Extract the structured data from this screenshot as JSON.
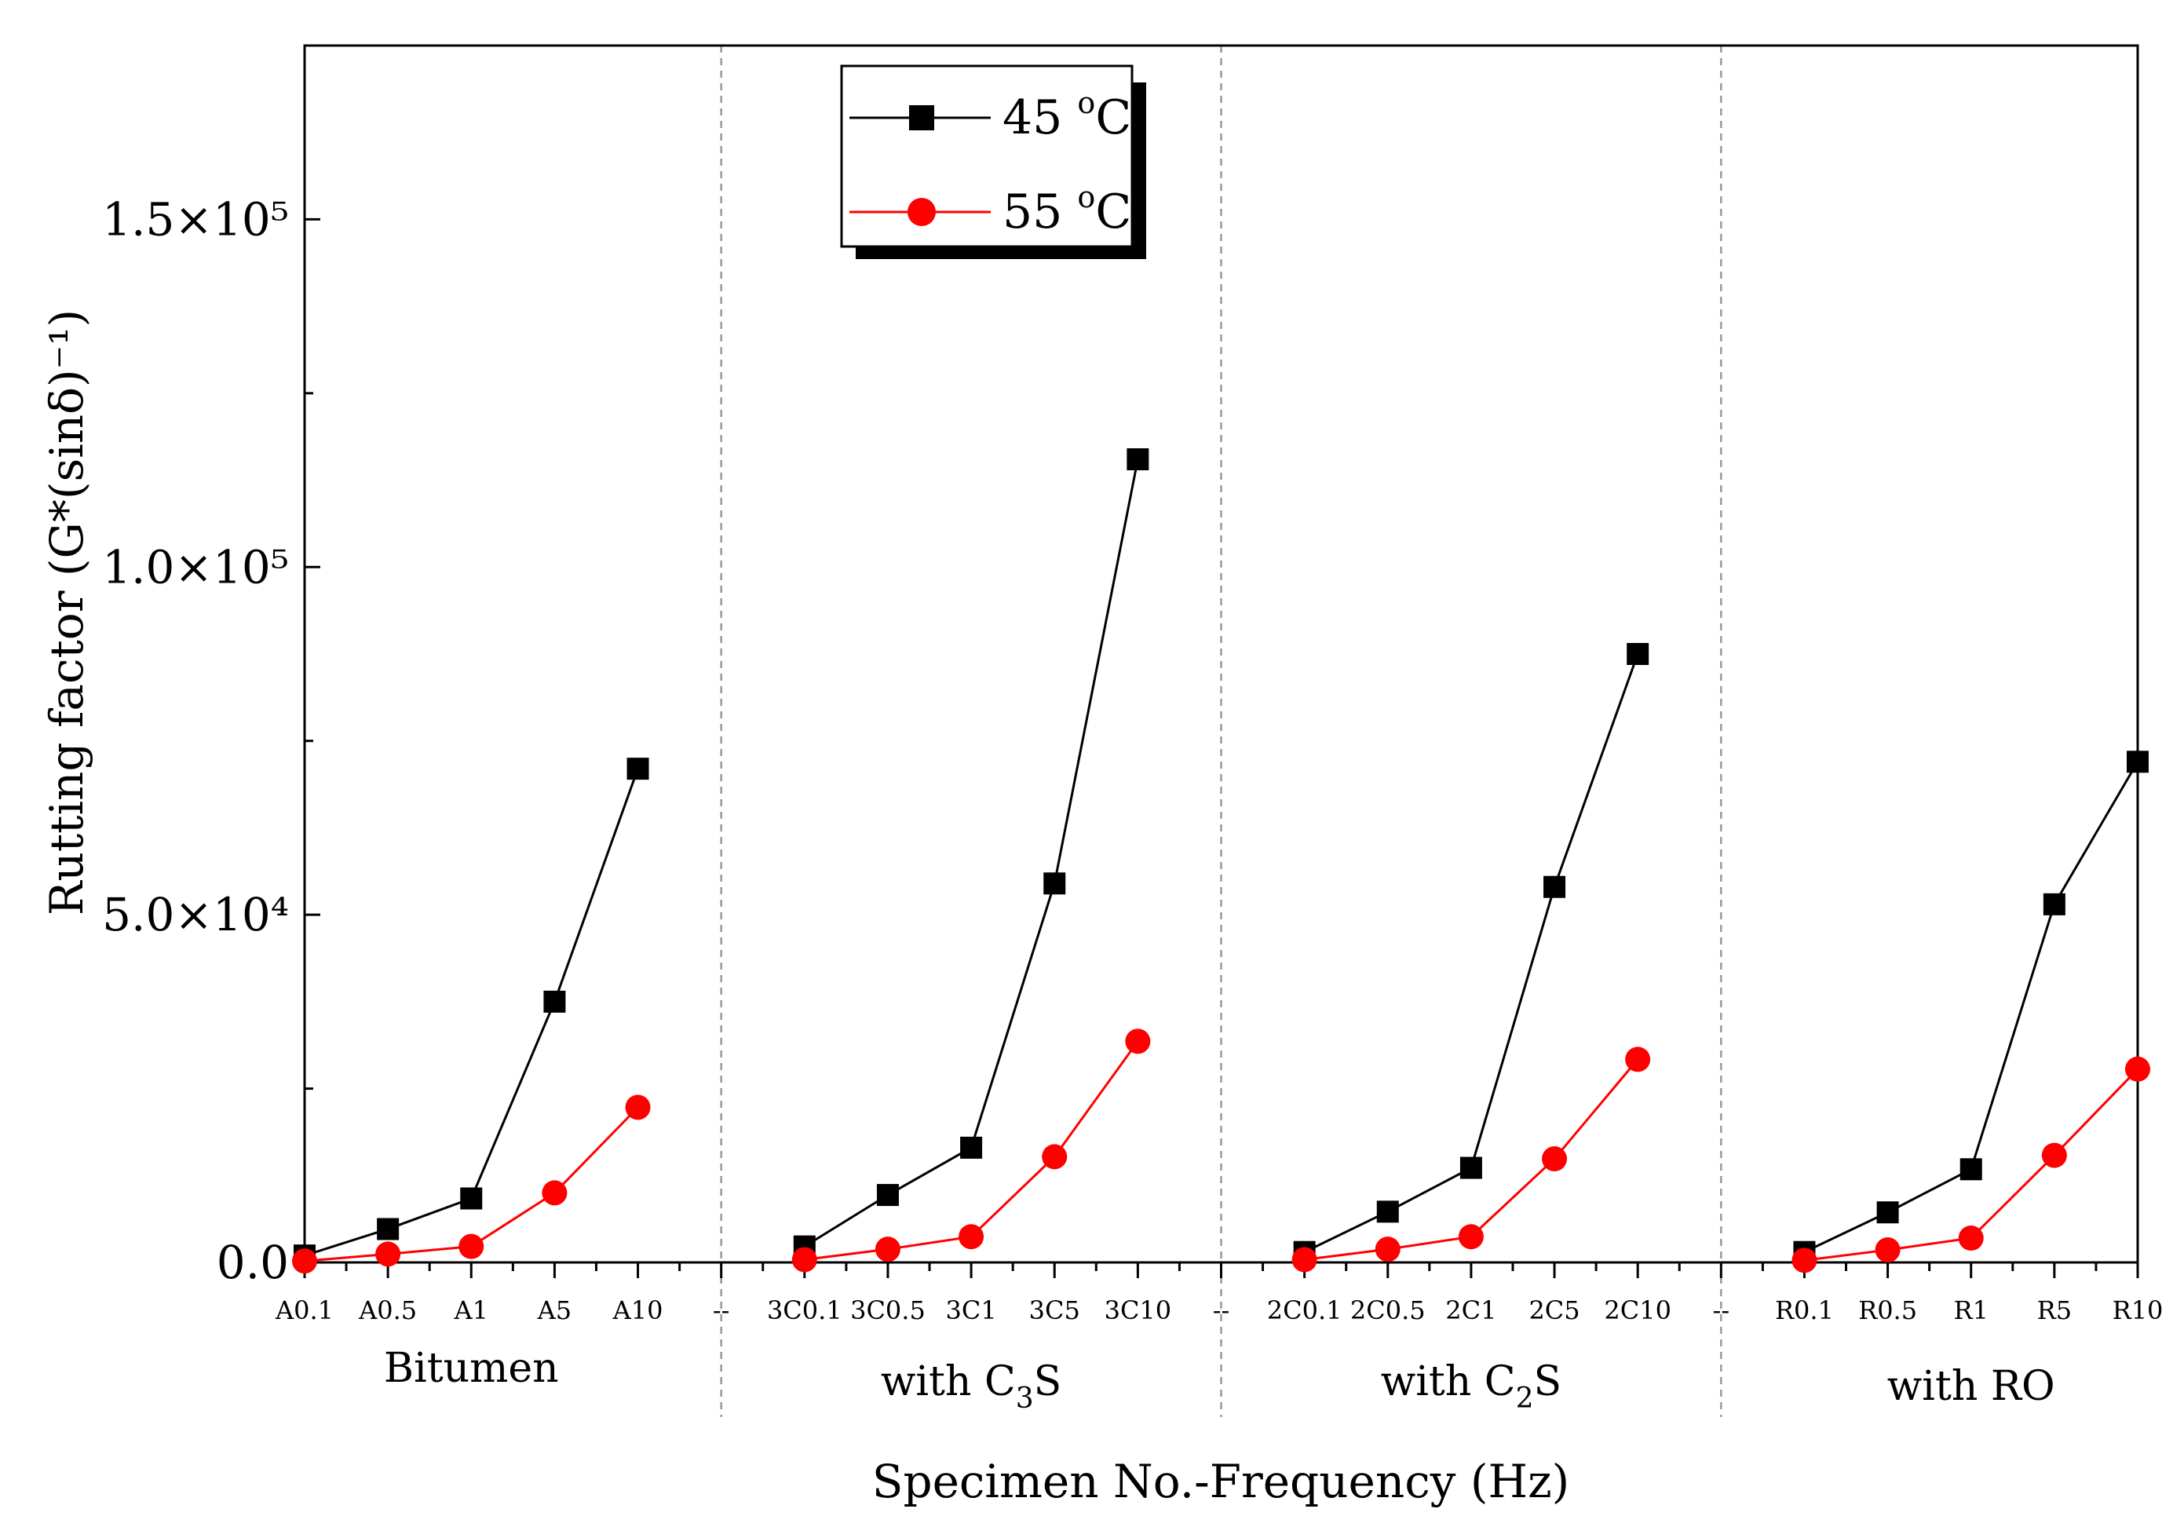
{
  "chart_data": {
    "type": "line",
    "title": "",
    "xlabel": "Specimen No.-Frequency (Hz)",
    "ylabel": "Rutting factor (G*(sinδ)⁻¹)",
    "ylim": [
      0,
      175000
    ],
    "grid": false,
    "legend_position": "top-center",
    "y_tick_labels": [
      "0.0",
      "5.0×10⁴",
      "1.0×10⁵",
      "1.5×10⁵"
    ],
    "y_tick_values": [
      0,
      50000,
      100000,
      150000
    ],
    "categories": [
      "A0.1",
      "A0.5",
      "A1",
      "A5",
      "A10",
      "--",
      "3C0.1",
      "3C0.5",
      "3C1",
      "3C5",
      "3C10",
      "--",
      "2C0.1",
      "2C0.5",
      "2C1",
      "2C5",
      "2C10",
      "--",
      "R0.1",
      "R0.5",
      "R1",
      "R5",
      "R10"
    ],
    "groups": [
      {
        "label": "Bitumen",
        "base": "Bitumen",
        "sub": ""
      },
      {
        "label": "with C3S",
        "base": "with C",
        "sub": "3",
        "tail": "S"
      },
      {
        "label": "with C2S",
        "base": "with C",
        "sub": "2",
        "tail": "S"
      },
      {
        "label": "with RO",
        "base": "with RO",
        "sub": ""
      }
    ],
    "series": [
      {
        "name": "45 °C",
        "legend_main": "45 ",
        "legend_sup": "o",
        "legend_tail": "C",
        "color": "#000000",
        "marker": "square",
        "values": [
          1000,
          4800,
          9200,
          37500,
          71000,
          null,
          2300,
          9700,
          16500,
          54500,
          115500,
          null,
          1500,
          7300,
          13600,
          54000,
          87500,
          null,
          1500,
          7200,
          13400,
          51500,
          72000
        ]
      },
      {
        "name": "55 °C",
        "legend_main": "55 ",
        "legend_sup": "o",
        "legend_tail": "C",
        "color": "#ff0000",
        "marker": "circle",
        "values": [
          200,
          1200,
          2300,
          10000,
          22300,
          null,
          400,
          1900,
          3700,
          15200,
          31800,
          null,
          400,
          1900,
          3700,
          14900,
          29200,
          null,
          300,
          1800,
          3500,
          15400,
          27800
        ]
      }
    ]
  }
}
